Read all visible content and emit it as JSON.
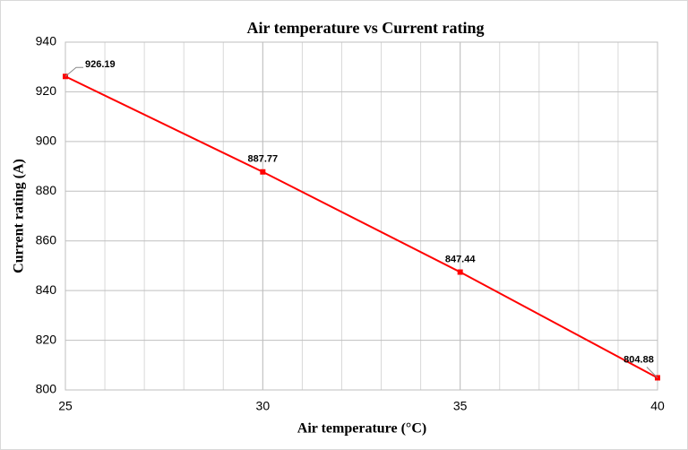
{
  "chart_data": {
    "type": "line",
    "title": "Air temperature vs Current rating",
    "x_label": "Air temperature (°C)",
    "y_label": "Current rating (A)",
    "x": [
      25,
      30,
      35,
      40
    ],
    "series": [
      {
        "name": "Current rating",
        "color": "#ff0000",
        "values": [
          926.19,
          887.77,
          847.44,
          804.88
        ]
      }
    ],
    "xlim": [
      25,
      40
    ],
    "xticks": [
      25,
      30,
      35,
      40
    ],
    "ylim": [
      800,
      940
    ],
    "yticks": [
      800,
      820,
      840,
      860,
      880,
      900,
      920,
      940
    ],
    "grid": true
  }
}
